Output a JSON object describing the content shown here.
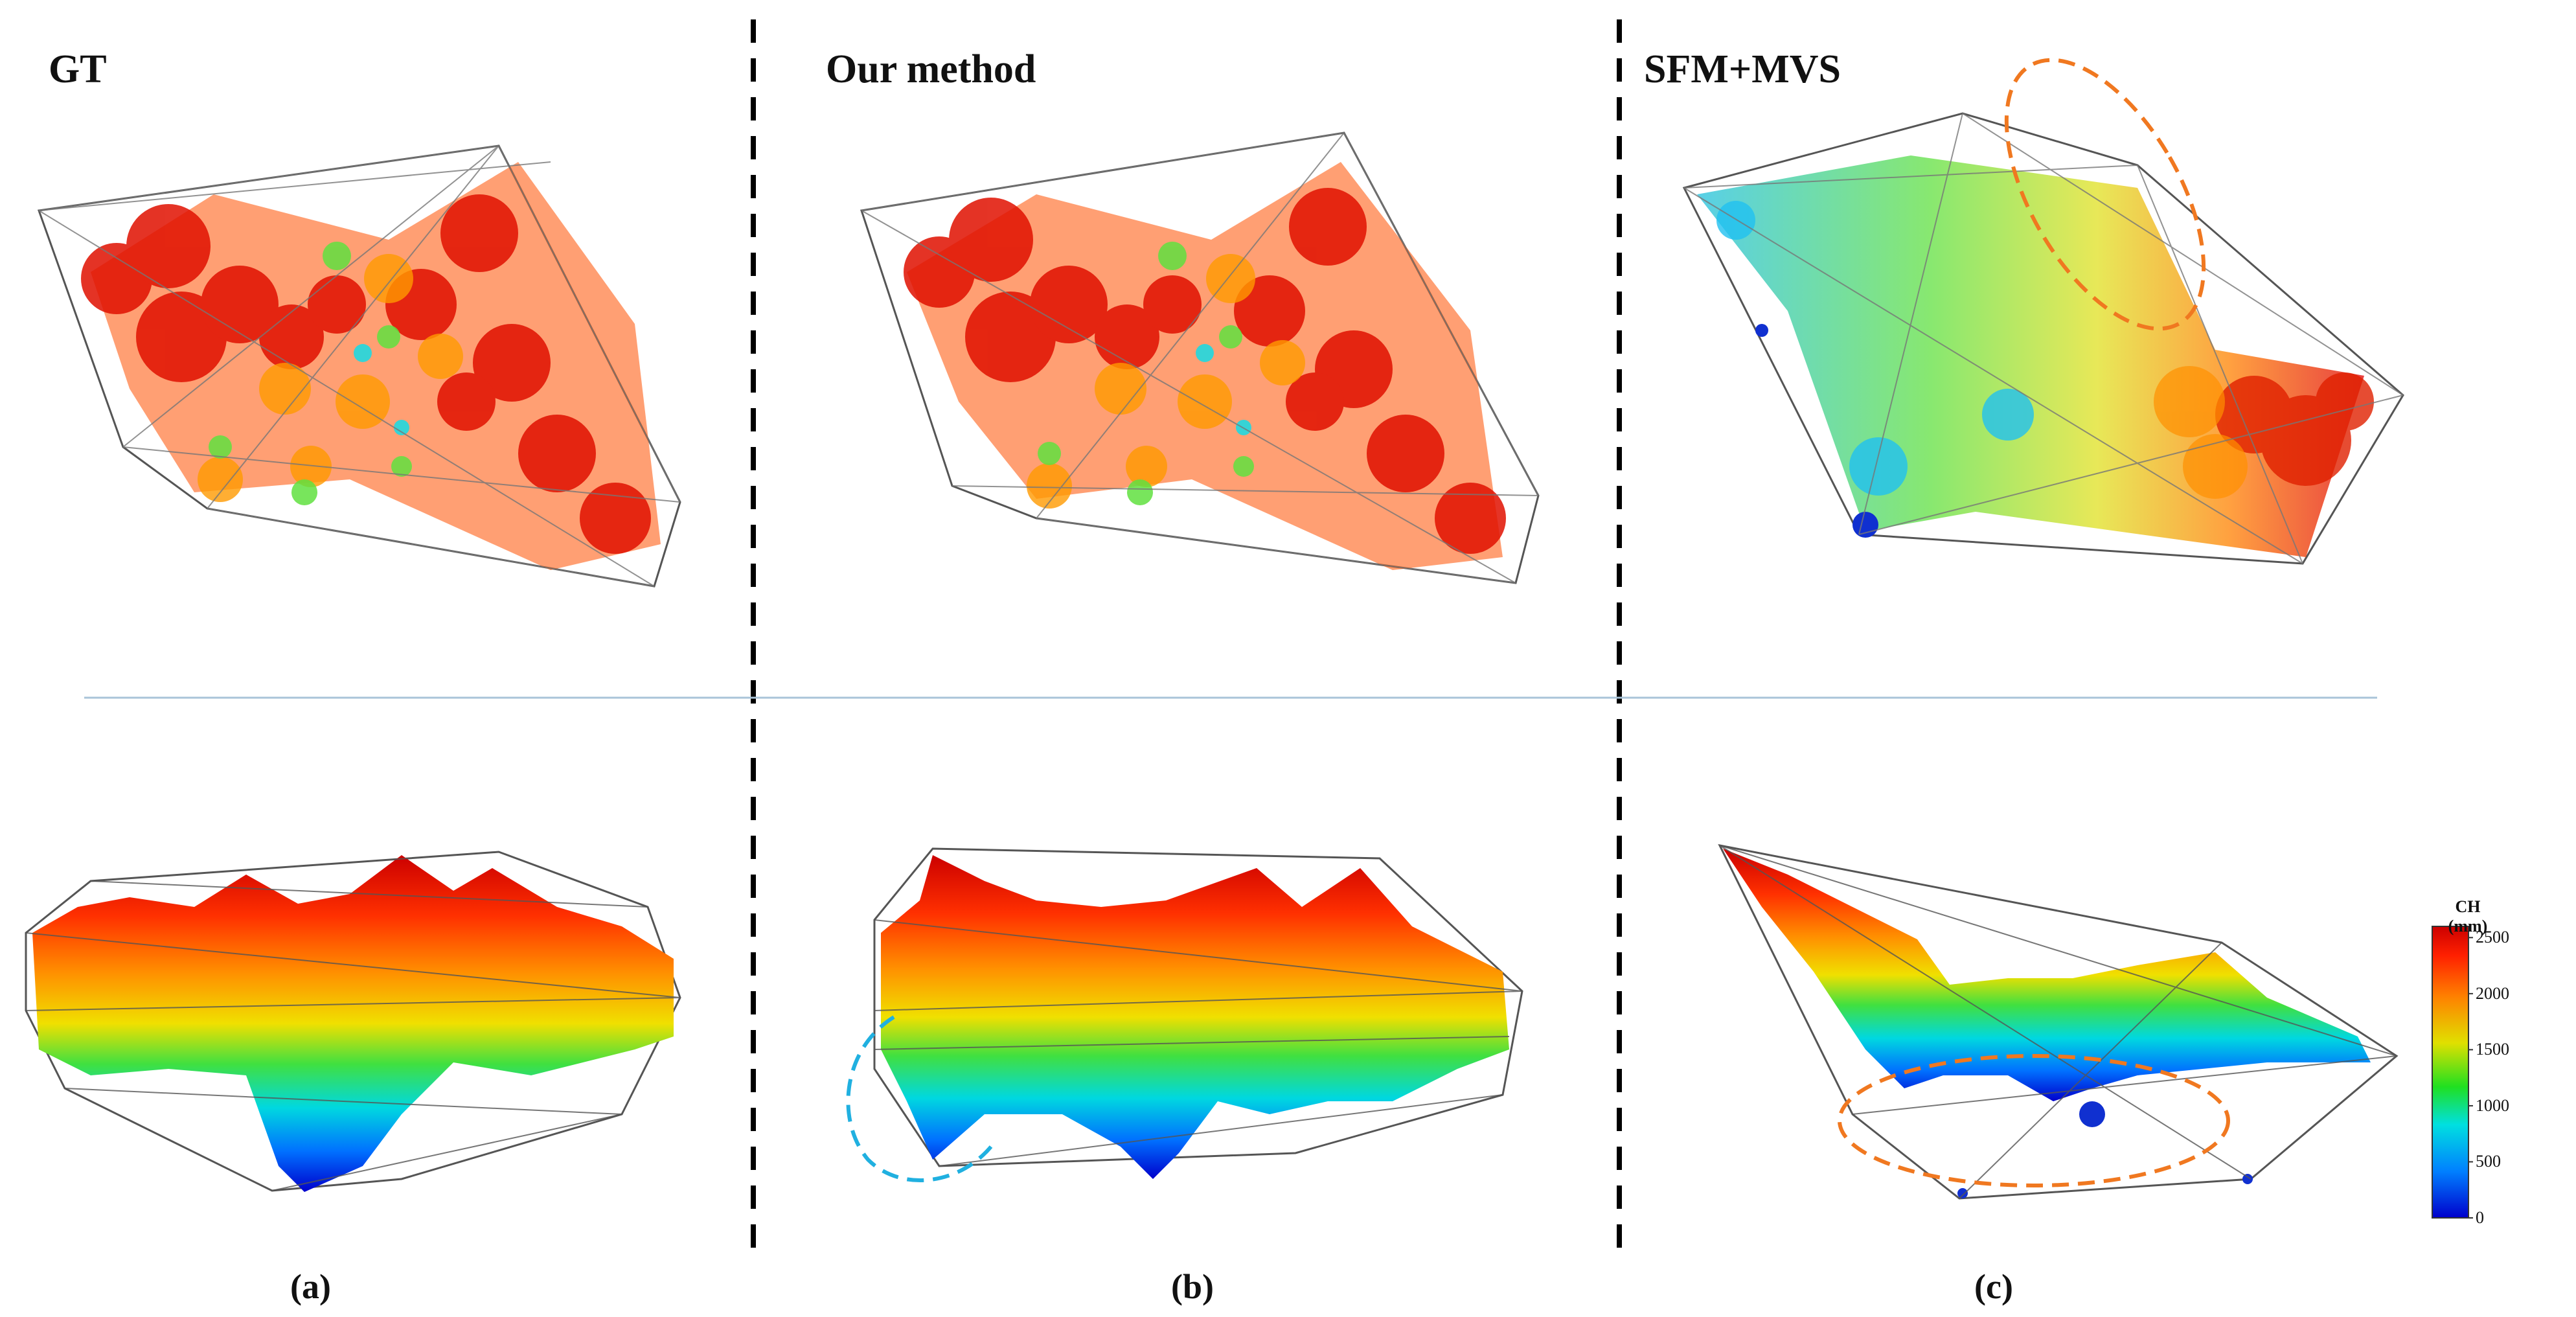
{
  "figure": {
    "titles": [
      "GT",
      "Our method",
      "SFM+MVS"
    ],
    "letters": [
      "(a)",
      "(b)",
      "(c)"
    ]
  },
  "colorbar": {
    "title_line1": "CH",
    "title_line2": "(mm)",
    "ticks": [
      "2500",
      "2000",
      "1500",
      "1000",
      "500",
      "0"
    ],
    "tick_values": [
      2500,
      2000,
      1500,
      1000,
      500,
      0
    ],
    "range": [
      0,
      2600
    ],
    "colors": [
      "#0000cc",
      "#0080ff",
      "#00e0e0",
      "#20e020",
      "#e0e000",
      "#ff8000",
      "#ff2000",
      "#cc0000"
    ]
  },
  "annotations": {
    "highlight_orange": "#f07820",
    "highlight_cyan": "#20b0e0"
  }
}
